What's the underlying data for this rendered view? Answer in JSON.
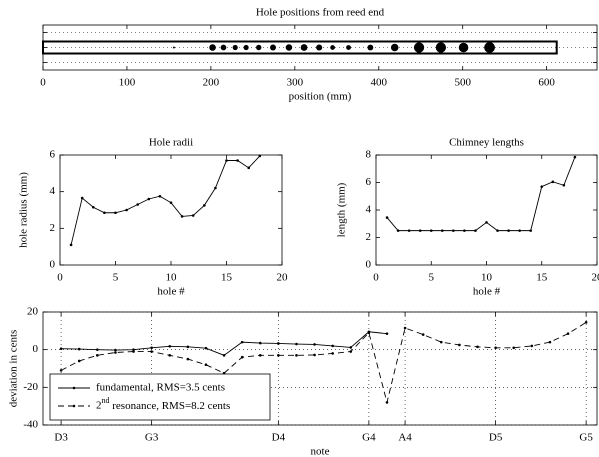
{
  "chart_data": [
    {
      "type": "scatter",
      "title": "Hole positions from reed end",
      "xlabel": "position (mm)",
      "x": [
        156,
        202,
        215,
        229,
        242,
        257,
        274,
        293,
        311,
        329,
        345,
        364,
        390,
        419,
        448,
        474,
        501,
        532
      ],
      "sizes": [
        1.1,
        3.65,
        3.15,
        2.85,
        2.85,
        3.0,
        3.3,
        3.6,
        3.75,
        3.4,
        2.65,
        2.7,
        3.25,
        4.2,
        5.7,
        5.7,
        5.3,
        5.95
      ],
      "tube_length": 612,
      "color": "#000000",
      "xlim": [
        0,
        660
      ],
      "xticks": [
        0,
        100,
        200,
        300,
        400,
        500,
        600
      ],
      "ylim": [
        -1.5,
        1.5
      ],
      "yticks": [
        -1,
        0,
        1
      ],
      "show_ytick_labels": false,
      "grid": "y"
    },
    {
      "type": "line",
      "title": "Hole radii",
      "xlabel": "hole #",
      "ylabel": "hole radius (mm)",
      "x": [
        1,
        2,
        3,
        4,
        5,
        6,
        7,
        8,
        9,
        10,
        11,
        12,
        13,
        14,
        15,
        16,
        17,
        18
      ],
      "series": [
        {
          "color": "#000000",
          "linestyle": "solid",
          "values": [
            1.1,
            3.65,
            3.15,
            2.85,
            2.85,
            3.0,
            3.3,
            3.6,
            3.75,
            3.4,
            2.65,
            2.7,
            3.25,
            4.2,
            5.7,
            5.7,
            5.3,
            5.95
          ]
        }
      ],
      "xlim": [
        0,
        20
      ],
      "xticks": [
        0,
        5,
        10,
        15,
        20
      ],
      "ylim": [
        0,
        6
      ],
      "yticks": [
        0,
        2,
        4,
        6
      ]
    },
    {
      "type": "line",
      "title": "Chimney lengths",
      "xlabel": "hole #",
      "ylabel": "length (mm)",
      "x": [
        1,
        2,
        3,
        4,
        5,
        6,
        7,
        8,
        9,
        10,
        11,
        12,
        13,
        14,
        15,
        16,
        17,
        18
      ],
      "series": [
        {
          "color": "#000000",
          "linestyle": "solid",
          "values": [
            3.45,
            2.5,
            2.5,
            2.5,
            2.5,
            2.5,
            2.5,
            2.5,
            2.5,
            3.1,
            2.5,
            2.5,
            2.5,
            2.5,
            5.7,
            6.05,
            5.8,
            7.85
          ]
        }
      ],
      "xlim": [
        0,
        20
      ],
      "xticks": [
        0,
        5,
        10,
        15,
        20
      ],
      "ylim": [
        0,
        8
      ],
      "yticks": [
        0,
        2,
        4,
        6,
        8
      ]
    },
    {
      "type": "line",
      "xlabel": "note",
      "ylabel": "deviation in cents",
      "x": [
        0,
        1,
        2,
        3,
        4,
        5,
        6,
        7,
        8,
        9,
        10,
        11,
        12,
        13,
        14,
        15,
        16,
        17,
        18,
        19,
        20,
        21,
        22,
        23,
        24,
        25,
        26,
        27,
        28,
        29
      ],
      "series": [
        {
          "name": "fundamental, RMS=3.5 cents",
          "color": "#000000",
          "linestyle": "solid",
          "values": [
            0.5,
            0.3,
            0,
            -0.2,
            0,
            1,
            1.8,
            1.5,
            0.8,
            -3,
            4,
            3.5,
            3.3,
            3,
            2.8,
            2,
            1.2,
            9.5,
            8.5,
            null,
            null,
            null,
            null,
            null,
            null,
            null,
            null,
            null,
            null,
            null
          ]
        },
        {
          "name": "2nd resonance, RMS=8.2 cents",
          "color": "#000000",
          "linestyle": "dashed",
          "values": [
            -11,
            -6,
            -3,
            -1.5,
            -1,
            -1,
            -3,
            -5,
            -8,
            -12.5,
            -4,
            -3,
            -3,
            -3,
            -2.8,
            -2,
            -1,
            9,
            -28,
            11.5,
            8,
            4,
            2.5,
            1.5,
            1,
            1,
            2,
            4,
            8.5,
            14.5
          ]
        }
      ],
      "xlim": [
        -1,
        29.6
      ],
      "xticks": [
        {
          "value": 0,
          "label": "D3"
        },
        {
          "value": 5,
          "label": "G3"
        },
        {
          "value": 12,
          "label": "D4"
        },
        {
          "value": 17,
          "label": "G4"
        },
        {
          "value": 19,
          "label": "A4"
        },
        {
          "value": 24,
          "label": "D5"
        },
        {
          "value": 29,
          "label": "G5"
        }
      ],
      "ylim": [
        -40,
        20
      ],
      "yticks": [
        -40,
        -20,
        0,
        20
      ],
      "grid": "both",
      "legend": "lower left"
    }
  ]
}
